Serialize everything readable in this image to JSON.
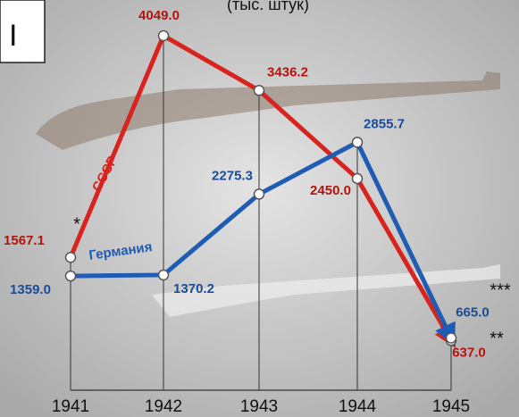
{
  "chart_data": {
    "type": "line",
    "subtitle": "(тыс. штук)",
    "panel_label": "I",
    "categories": [
      "1941",
      "1942",
      "1943",
      "1944",
      "1945"
    ],
    "series": [
      {
        "name": "СССР",
        "color": "#d8231f",
        "label_color": "#b3140f",
        "values": [
          1567.1,
          4049,
          3436.2,
          2450,
          637
        ],
        "value_labels": [
          "1567.1",
          "4049.0",
          "3436.2",
          "2450.0",
          "637.0"
        ]
      },
      {
        "name": "Германия",
        "color": "#1f5cb3",
        "label_color": "#1a4c96",
        "values": [
          1359,
          1370.2,
          2275.3,
          2855.7,
          665
        ],
        "value_labels": [
          "1359.0",
          "1370.2",
          "2275.3",
          "2855.7",
          "665.0"
        ]
      }
    ],
    "annotations": [
      "*",
      "***",
      "**"
    ]
  }
}
